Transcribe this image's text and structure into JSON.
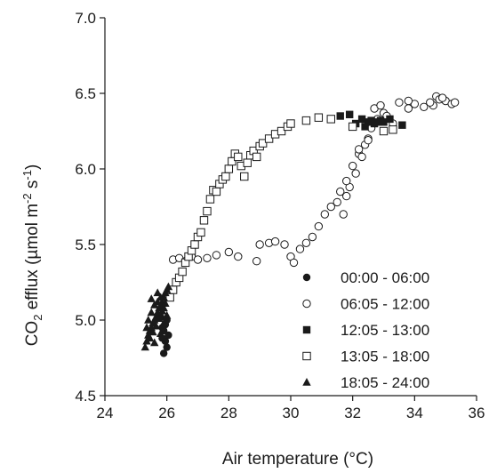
{
  "chart_data": {
    "type": "scatter",
    "title": "",
    "xlabel": "Air temperature (°C)",
    "ylabel": {
      "base": "CO",
      "sub": "2",
      "mid": " efflux (µmol m",
      "sup1": "-2",
      "space": " s",
      "sup2": "-1",
      "end": ")"
    },
    "xlim": [
      24,
      36
    ],
    "ylim": [
      4.5,
      7.0
    ],
    "x_ticks": [
      24,
      26,
      28,
      30,
      32,
      34,
      36
    ],
    "y_ticks": [
      4.5,
      5.0,
      5.5,
      6.0,
      6.5,
      7.0
    ],
    "x_tick_labels": [
      "24",
      "26",
      "28",
      "30",
      "32",
      "34",
      "36"
    ],
    "y_tick_labels": [
      "4.5",
      "5.0",
      "5.5",
      "6.0",
      "6.5",
      "7.0"
    ],
    "grid": false,
    "legend_position": "bottom-right",
    "series": [
      {
        "name": "00:00 - 06:00",
        "marker": "filled-circle",
        "x": [
          25.9,
          26.0,
          25.95,
          26.05,
          25.85,
          25.9,
          25.95,
          26.0,
          25.8,
          25.85
        ],
        "y": [
          4.78,
          4.82,
          4.86,
          4.9,
          4.88,
          4.93,
          4.97,
          5.0,
          5.02,
          4.95
        ]
      },
      {
        "name": "06:05 - 12:00",
        "marker": "open-circle",
        "x": [
          26.2,
          26.4,
          26.6,
          26.8,
          27.0,
          27.3,
          27.6,
          28.0,
          28.3,
          28.9,
          29.0,
          29.3,
          29.5,
          29.8,
          30.0,
          30.1,
          30.3,
          30.5,
          30.7,
          30.9,
          31.1,
          31.3,
          31.5,
          31.6,
          31.7,
          31.8,
          31.9,
          31.8,
          32.0,
          32.1,
          32.2,
          32.3,
          32.4,
          32.5,
          32.6,
          32.8,
          33.0,
          32.7,
          32.9,
          33.1,
          33.3,
          33.5,
          34.0,
          34.3,
          34.6,
          34.7,
          34.8,
          35.0,
          35.2,
          35.3,
          33.8,
          33.8,
          34.5,
          34.9,
          32.2,
          32.5
        ],
        "y": [
          5.4,
          5.41,
          5.39,
          5.42,
          5.4,
          5.41,
          5.43,
          5.45,
          5.42,
          5.39,
          5.5,
          5.51,
          5.52,
          5.5,
          5.42,
          5.38,
          5.47,
          5.51,
          5.55,
          5.62,
          5.7,
          5.75,
          5.78,
          5.85,
          5.7,
          5.82,
          5.88,
          5.92,
          6.02,
          5.97,
          6.1,
          6.08,
          6.16,
          6.2,
          6.27,
          6.33,
          6.37,
          6.4,
          6.42,
          6.35,
          6.3,
          6.44,
          6.43,
          6.41,
          6.42,
          6.48,
          6.46,
          6.45,
          6.43,
          6.44,
          6.45,
          6.4,
          6.44,
          6.47,
          6.13,
          6.19
        ]
      },
      {
        "name": "12:05 - 13:00",
        "marker": "filled-square",
        "x": [
          31.6,
          31.9,
          32.1,
          32.3,
          32.4,
          32.5,
          32.6,
          32.7,
          32.8,
          32.9,
          33.0,
          33.2,
          33.6
        ],
        "y": [
          6.35,
          6.36,
          6.3,
          6.33,
          6.28,
          6.31,
          6.32,
          6.3,
          6.31,
          6.32,
          6.31,
          6.33,
          6.29
        ]
      },
      {
        "name": "13:05 - 18:00",
        "marker": "open-square",
        "x": [
          26.1,
          26.2,
          26.3,
          26.4,
          26.5,
          26.6,
          26.7,
          26.8,
          26.9,
          27.0,
          27.1,
          27.2,
          27.3,
          27.4,
          27.5,
          27.6,
          27.7,
          27.8,
          27.9,
          28.0,
          28.1,
          28.2,
          28.3,
          28.4,
          28.5,
          28.6,
          28.7,
          28.8,
          28.9,
          29.0,
          29.1,
          29.3,
          29.5,
          29.7,
          29.9,
          30.0,
          30.5,
          30.9,
          31.3,
          32.0,
          33.0,
          33.3
        ],
        "y": [
          5.15,
          5.2,
          5.25,
          5.28,
          5.32,
          5.38,
          5.42,
          5.46,
          5.5,
          5.55,
          5.58,
          5.66,
          5.72,
          5.8,
          5.86,
          5.85,
          5.9,
          5.93,
          5.95,
          6.0,
          6.05,
          6.1,
          6.08,
          6.02,
          5.95,
          6.04,
          6.09,
          6.12,
          6.08,
          6.15,
          6.17,
          6.2,
          6.23,
          6.25,
          6.28,
          6.3,
          6.32,
          6.34,
          6.33,
          6.28,
          6.25,
          6.26
        ]
      },
      {
        "name": "18:05 - 24:00",
        "marker": "filled-triangle",
        "x": [
          25.3,
          25.35,
          25.4,
          25.45,
          25.5,
          25.55,
          25.6,
          25.65,
          25.7,
          25.75,
          25.8,
          25.85,
          25.9,
          25.95,
          26.0,
          26.05,
          25.4,
          25.5,
          25.6,
          25.7,
          25.8,
          25.9,
          26.0,
          25.45,
          25.55,
          25.65,
          25.75,
          25.85,
          25.95,
          25.35,
          25.5,
          25.7,
          25.9,
          25.6,
          25.8
        ],
        "y": [
          4.82,
          4.86,
          4.9,
          4.93,
          4.95,
          4.98,
          5.0,
          5.02,
          5.05,
          5.08,
          5.1,
          5.12,
          5.15,
          5.18,
          5.2,
          5.22,
          5.0,
          5.05,
          5.1,
          5.12,
          5.15,
          5.08,
          5.03,
          4.88,
          4.92,
          4.96,
          5.01,
          5.06,
          5.11,
          4.95,
          5.14,
          5.18,
          4.98,
          4.85,
          4.91
        ]
      }
    ]
  }
}
